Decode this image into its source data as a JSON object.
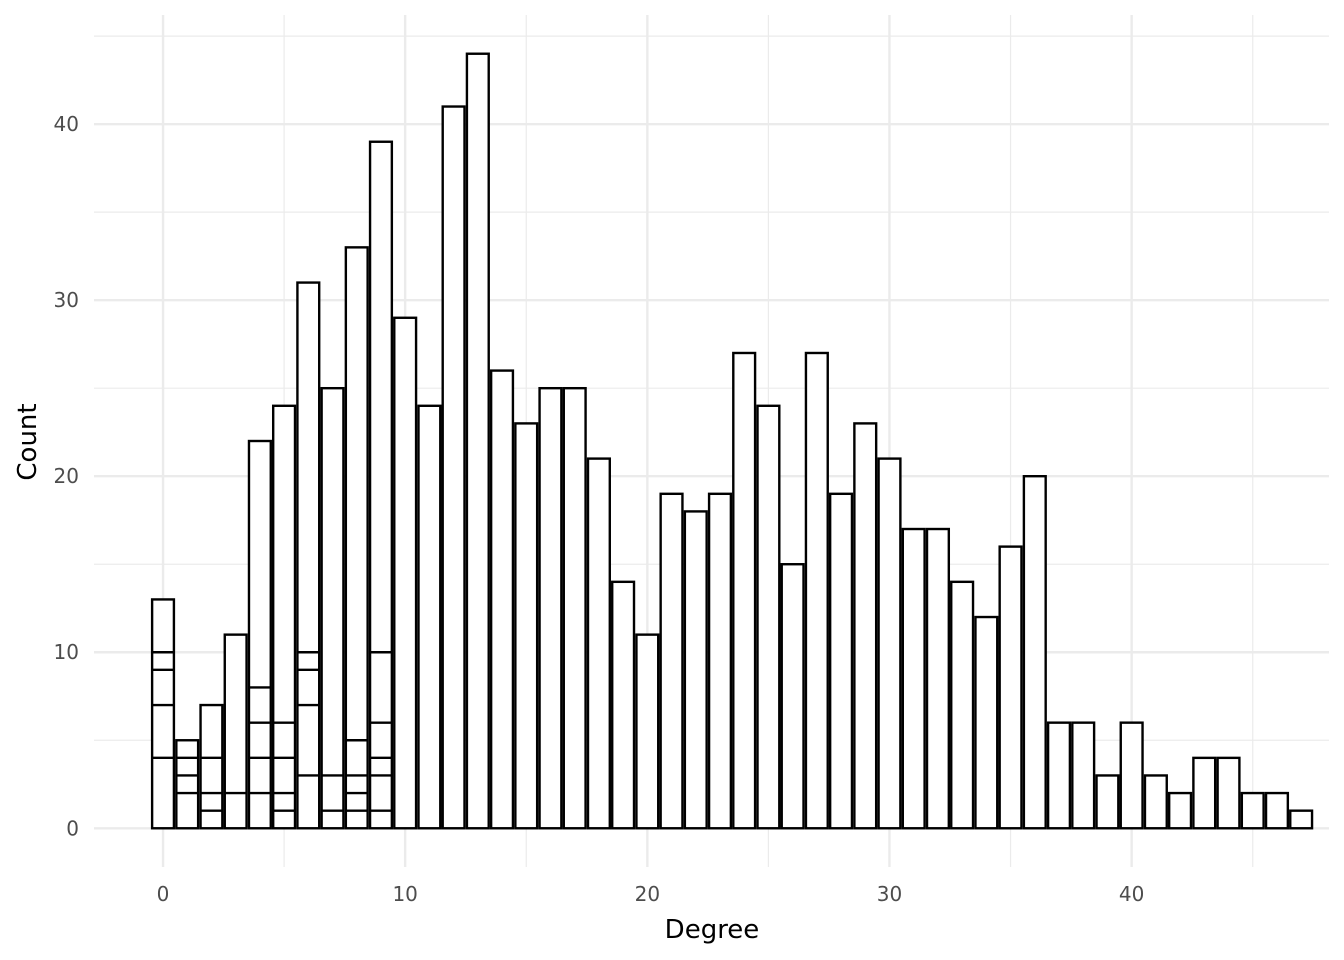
{
  "chart_data": {
    "type": "bar",
    "title": "",
    "xlabel": "Degree",
    "ylabel": "Count",
    "xlim": [
      -2.85,
      48.15
    ],
    "ylim": [
      -2.2,
      46.2
    ],
    "x_ticks": [
      0,
      10,
      20,
      30,
      40
    ],
    "x_minor_ticks": [
      5,
      15,
      25,
      35,
      45
    ],
    "y_ticks": [
      0,
      10,
      20,
      30,
      40
    ],
    "y_minor_ticks": [
      5,
      15,
      25,
      35,
      45
    ],
    "bar_width": 0.9,
    "grid": true,
    "legend": "none",
    "colors": {
      "fill": "#ffffff",
      "stroke": "#000000",
      "grid": "#ebebeb",
      "tick_text": "#4d4d4d"
    },
    "x": [
      0,
      1,
      2,
      3,
      4,
      5,
      6,
      7,
      8,
      9,
      10,
      11,
      12,
      13,
      14,
      15,
      16,
      17,
      18,
      19,
      20,
      21,
      22,
      23,
      24,
      25,
      26,
      27,
      28,
      29,
      30,
      31,
      32,
      33,
      34,
      35,
      36,
      37,
      38,
      39,
      40,
      41,
      42,
      43,
      44,
      45,
      46,
      47
    ],
    "values": [
      13,
      5,
      7,
      11,
      22,
      24,
      31,
      25,
      33,
      39,
      29,
      24,
      41,
      44,
      26,
      23,
      25,
      25,
      21,
      14,
      11,
      19,
      18,
      19,
      27,
      24,
      15,
      27,
      19,
      23,
      21,
      17,
      17,
      14,
      12,
      16,
      20,
      6,
      6,
      3,
      6,
      3,
      2,
      4,
      4,
      2,
      2,
      1
    ],
    "stack_segments": [
      {
        "x": 0,
        "boundaries": [
          4,
          7,
          9,
          10
        ]
      },
      {
        "x": 1,
        "boundaries": [
          2,
          3,
          4
        ]
      },
      {
        "x": 2,
        "boundaries": [
          1,
          2,
          4
        ]
      },
      {
        "x": 3,
        "boundaries": [
          2
        ]
      },
      {
        "x": 4,
        "boundaries": [
          2,
          4,
          6,
          8
        ]
      },
      {
        "x": 5,
        "boundaries": [
          1,
          2,
          4,
          6
        ]
      },
      {
        "x": 6,
        "boundaries": [
          3,
          7,
          9,
          10
        ]
      },
      {
        "x": 7,
        "boundaries": [
          1,
          3
        ]
      },
      {
        "x": 8,
        "boundaries": [
          1,
          2,
          3,
          5
        ]
      },
      {
        "x": 9,
        "boundaries": [
          1,
          3,
          4,
          6,
          10
        ]
      }
    ]
  }
}
